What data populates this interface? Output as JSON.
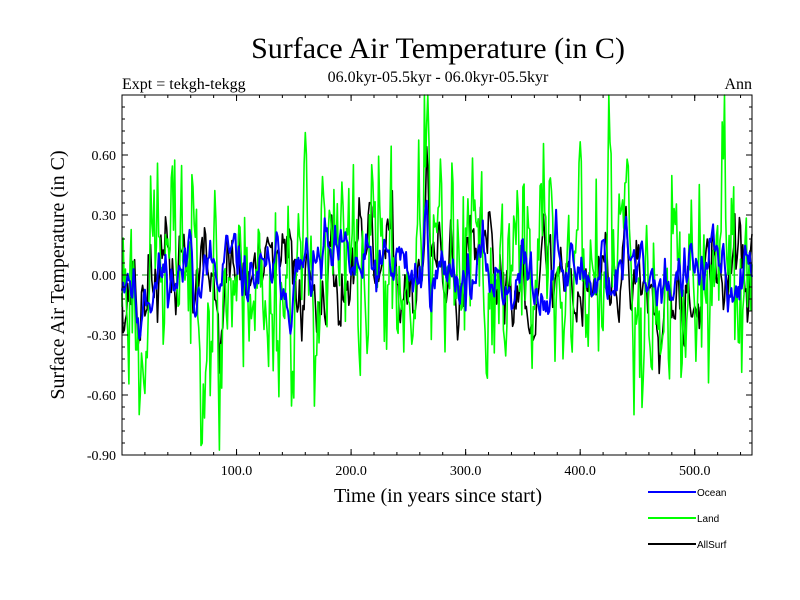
{
  "chart_data": {
    "type": "line",
    "title": "Surface Air Temperature (in C)",
    "subtitle": "06.0kyr-05.5kyr - 06.0kyr-05.5kyr",
    "expt_label": "Expt = tekgh-tekgg",
    "season_label": "Ann",
    "xlabel": "Time (in years since start)",
    "ylabel": "Surface Air Temperature (in C)",
    "xlim": [
      0,
      550
    ],
    "ylim": [
      -0.9,
      0.9
    ],
    "x_ticks": [
      100,
      200,
      300,
      400,
      500
    ],
    "x_tick_labels": [
      "100.0",
      "200.0",
      "300.0",
      "400.0",
      "500.0"
    ],
    "y_ticks": [
      -0.9,
      -0.6,
      -0.3,
      0.0,
      0.3,
      0.6
    ],
    "y_tick_labels": [
      "-0.90",
      "-0.60",
      "-0.30",
      "0.00",
      "0.30",
      "0.60"
    ],
    "zero_line": true,
    "legend_position": "bottom-right",
    "series": [
      {
        "name": "Ocean",
        "color": "#0000ff",
        "amplitude": 0.13,
        "seed": 11,
        "smooth": 0.78,
        "events": [
          [
            5,
            0.1
          ],
          [
            15,
            -0.33
          ],
          [
            60,
            0.22
          ],
          [
            85,
            -0.16
          ],
          [
            125,
            -0.12
          ],
          [
            177,
            0.14
          ],
          [
            242,
            0.12
          ],
          [
            266,
            0.29
          ],
          [
            290,
            0.13
          ],
          [
            380,
            0.2
          ],
          [
            420,
            0.15
          ],
          [
            440,
            0.16
          ],
          [
            530,
            -0.1
          ]
        ]
      },
      {
        "name": "Land",
        "color": "#00ff00",
        "amplitude": 0.25,
        "seed": 23,
        "smooth": 0.55,
        "events": [
          [
            15,
            -0.5
          ],
          [
            30,
            0.25
          ],
          [
            52,
            0.45
          ],
          [
            85,
            -0.58
          ],
          [
            105,
            -0.3
          ],
          [
            110,
            0.35
          ],
          [
            125,
            -0.45
          ],
          [
            175,
            0.5
          ],
          [
            222,
            0.35
          ],
          [
            263,
            0.5
          ],
          [
            266,
            0.62
          ],
          [
            285,
            -0.25
          ],
          [
            355,
            0.4
          ],
          [
            368,
            0.3
          ],
          [
            400,
            0.3
          ],
          [
            425,
            0.45
          ],
          [
            440,
            0.5
          ],
          [
            470,
            -0.35
          ],
          [
            545,
            -0.35
          ]
        ]
      },
      {
        "name": "AllSurf",
        "color": "#000000",
        "amplitude": 0.16,
        "seed": 37,
        "smooth": 0.72,
        "events": [
          [
            15,
            -0.3
          ],
          [
            52,
            0.25
          ],
          [
            85,
            -0.35
          ],
          [
            125,
            -0.15
          ],
          [
            175,
            0.2
          ],
          [
            266,
            0.4
          ],
          [
            440,
            0.25
          ]
        ]
      }
    ]
  }
}
